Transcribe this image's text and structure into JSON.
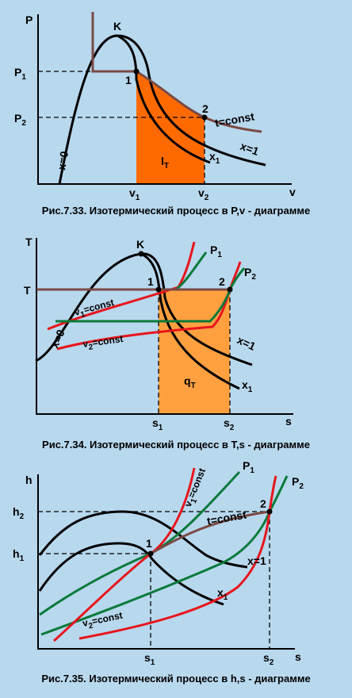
{
  "figures": [
    {
      "caption": "Рис.7.33. Изотермический процесс в P,v - диаграмме",
      "axis_y": "P",
      "axis_x": "v",
      "critical_point": "K",
      "point_1": "1",
      "point_2": "2",
      "y_mark_1": {
        "main": "P",
        "sub": "1"
      },
      "y_mark_2": {
        "main": "P",
        "sub": "2"
      },
      "x_mark_1": {
        "main": "v",
        "sub": "1"
      },
      "x_mark_2": {
        "main": "v",
        "sub": "2"
      },
      "area_label": {
        "main": "l",
        "sub": "T"
      },
      "curve_labels": [
        "x=0",
        "x=1",
        "t=const"
      ],
      "x1_label": {
        "main": "x",
        "sub": "1"
      }
    },
    {
      "caption": "Рис.7.34. Изотермический процесс в T,s - диаграмме",
      "axis_y": "T",
      "axis_x": "s",
      "critical_point": "K",
      "point_1": "1",
      "point_2": "2",
      "y_mark": "T",
      "x_mark_1": {
        "main": "s",
        "sub": "1"
      },
      "x_mark_2": {
        "main": "s",
        "sub": "2"
      },
      "area_label": {
        "main": "q",
        "sub": "T"
      },
      "pressure_1": {
        "main": "P",
        "sub": "1"
      },
      "pressure_2": {
        "main": "P",
        "sub": "2"
      },
      "volume_1": {
        "main": "v",
        "sub": "1",
        "rest": "=const"
      },
      "volume_2": {
        "main": "v",
        "sub": "2",
        "rest": "=const"
      },
      "curve_labels": [
        "x=0",
        "x=1"
      ],
      "x1_label": {
        "main": "x",
        "sub": "1"
      }
    },
    {
      "caption": "Рис.7.35. Изотермический процесс в h,s - диаграмме",
      "axis_y": "h",
      "axis_x": "s",
      "point_1": "1",
      "point_2": "2",
      "y_mark_1": {
        "main": "h",
        "sub": "1"
      },
      "y_mark_2": {
        "main": "h",
        "sub": "2"
      },
      "x_mark_1": {
        "main": "s",
        "sub": "1"
      },
      "x_mark_2": {
        "main": "s",
        "sub": "2"
      },
      "pressure_1": {
        "main": "P",
        "sub": "1"
      },
      "pressure_2": {
        "main": "P",
        "sub": "2"
      },
      "volume_1": {
        "main": "v",
        "sub": "1",
        "rest": "=const"
      },
      "volume_2": {
        "main": "v",
        "sub": "2",
        "rest": "=const"
      },
      "curve_labels": [
        "t=const",
        "x=1"
      ],
      "x1_label": {
        "main": "x",
        "sub": "1"
      }
    }
  ]
}
